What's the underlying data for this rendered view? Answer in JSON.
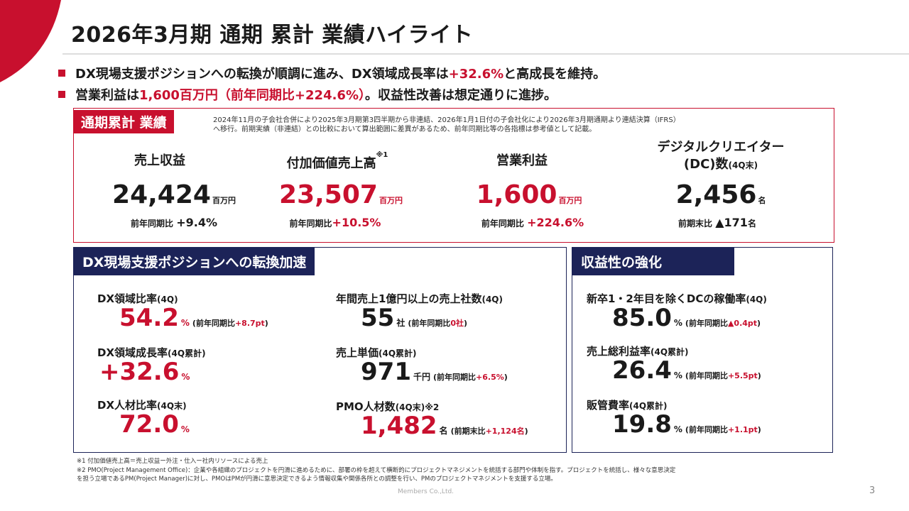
{
  "header": {
    "title": "2026年3月期 通期 累計 業績ハイライト",
    "accent_color": "#c8102e",
    "navy_color": "#1c2358"
  },
  "bullets": [
    {
      "pre": "DX現場支援ポジションへの転換が順調に進み、DX領域成長率は",
      "hl": "+32.6%",
      "post": "と高成長を維持。"
    },
    {
      "pre": "営業利益は",
      "hl": "1,600百万円（前年同期比+224.6%）",
      "post": "。収益性改善は想定通りに進捗。"
    }
  ],
  "full_year": {
    "tag": "通期累計 業績",
    "note_line1": "2024年11月の子会社合併により2025年3月期第3四半期から非連結、2026年1月1日付の子会社化により2026年3月期通期より連結決算（IFRS）",
    "note_line2": "へ移行。前期実績（非連結）との比較において算出範囲に差異があるため、前年同期比等の各指標は参考値として記載。",
    "kpis": [
      {
        "label": "売上収益",
        "sup": "",
        "value": "24,424",
        "unit": "百万円",
        "cmp_label": "前年同期比",
        "cmp_value": "+9.4%",
        "unit_sub": ""
      },
      {
        "label": "付加価値売上高",
        "sup": "※1",
        "value": "23,507",
        "unit": "百万円",
        "cmp_label": "前年同期比",
        "cmp_value": "+10.5%",
        "unit_sub": ""
      },
      {
        "label": "営業利益",
        "sup": "",
        "value": "1,600",
        "unit": "百万円",
        "cmp_label": "前年同期比",
        "cmp_value": "+224.6%",
        "unit_sub": ""
      },
      {
        "label_line1": "デジタルクリエイター",
        "label_line2": "(DC)数",
        "label_suffix": "(4Q末)",
        "value": "2,456",
        "unit": "名",
        "cmp_label": "前期末比",
        "cmp_value": "▲171",
        "cmp_unit": "名"
      }
    ]
  },
  "dx_section": {
    "tag": "DX現場支援ポジションへの転換加速",
    "metrics": [
      {
        "label": "DX領域比率",
        "period": "(4Q)",
        "value": "54.2",
        "unit": "%",
        "cmp_pre": "(前年同期比",
        "cmp_value": "+8.7pt",
        "cmp_post": ")"
      },
      {
        "label": "DX領域成長率",
        "period": "(4Q累計)",
        "value": "+32.6",
        "unit": "%",
        "cmp_pre": "",
        "cmp_value": "",
        "cmp_post": ""
      },
      {
        "label": "DX人材比率",
        "period": "(4Q末)",
        "value": "72.0",
        "unit": "%",
        "cmp_pre": "",
        "cmp_value": "",
        "cmp_post": ""
      },
      {
        "label": "年間売上1億円以上の売上社数",
        "period": "(4Q)",
        "value": "55",
        "unit": "社",
        "cmp_pre": "(前年同期比",
        "cmp_value": "0社",
        "cmp_post": ")"
      },
      {
        "label": "売上単価",
        "period": "(4Q累計)",
        "value": "971",
        "unit": "千円",
        "cmp_pre": "(前年同期比",
        "cmp_value": "+6.5%",
        "cmp_post": ")"
      },
      {
        "label": "PMO人材数",
        "period": "(4Q末)※2",
        "value": "1,482",
        "unit": "名",
        "cmp_pre": "(前期末比",
        "cmp_value": "+1,124名",
        "cmp_post": ")"
      }
    ]
  },
  "profit_section": {
    "tag": "収益性の強化",
    "metrics": [
      {
        "label": "新卒1・2年目を除くDCの稼働率",
        "period": "(4Q)",
        "value": "85.0",
        "unit": "%",
        "cmp_pre": "(前年同期比",
        "cmp_value": "▲0.4pt",
        "cmp_post": ")"
      },
      {
        "label": "売上総利益率",
        "period": "(4Q累計)",
        "value": "26.4",
        "unit": "%",
        "cmp_pre": "(前年同期比",
        "cmp_value": "+5.5pt",
        "cmp_post": ")"
      },
      {
        "label": "販管費率",
        "period": "(4Q累計)",
        "value": "19.8",
        "unit": "%",
        "cmp_pre": "(前年同期比",
        "cmp_value": "+1.1pt",
        "cmp_post": ")"
      }
    ]
  },
  "footnotes": [
    "※1 付加価値売上高＝売上収益ー外注・仕入ー社内リソースによる売上",
    "※2 PMO(Project Management Office)：企業や各組織のプロジェクトを円滑に進めるために、部署の枠を超えて横断的にプロジェクトマネジメントを統括する部門や体制を指す。プロジェクトを統括し、様々な意思決定",
    "を担う立場であるPM(Project Manager)に対し、PMOはPMが円滑に意思決定できるよう情報収集や関係各所との調整を行い、PMのプロジェクトマネジメントを支援する立場。"
  ],
  "company": "Members Co.,Ltd.",
  "page_number": "3"
}
